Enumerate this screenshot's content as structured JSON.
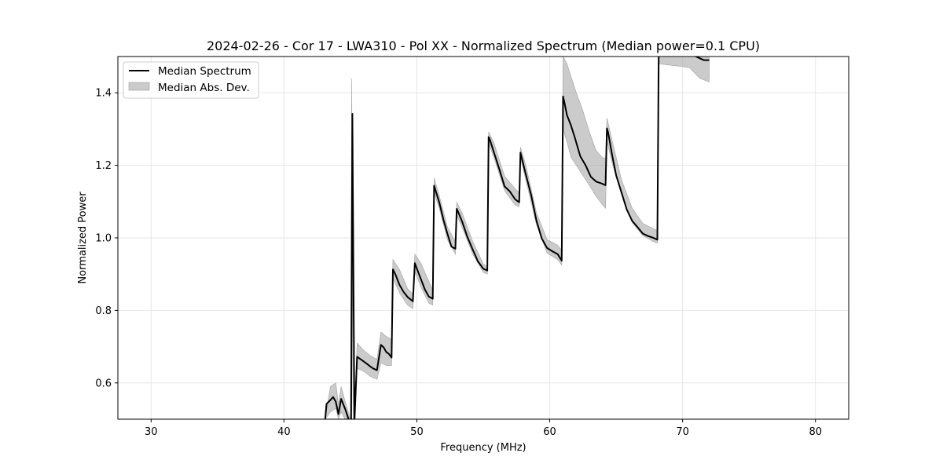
{
  "chart_data": {
    "type": "line",
    "title": "2024-02-26 - Cor 17 - LWA310 - Pol XX - Normalized Spectrum (Median power=0.1 CPU)",
    "xlabel": "Frequency (MHz)",
    "ylabel": "Normalized Power",
    "xlim": [
      27.5,
      82.5
    ],
    "ylim": [
      0.5,
      1.5
    ],
    "xticks": [
      30,
      40,
      50,
      60,
      70,
      80
    ],
    "yticks": [
      0.6,
      0.8,
      1.0,
      1.2,
      1.4
    ],
    "xtick_labels": [
      "30",
      "40",
      "50",
      "60",
      "70",
      "80"
    ],
    "ytick_labels": [
      "0.6",
      "0.8",
      "1.0",
      "1.2",
      "1.4"
    ],
    "grid": true,
    "legend_position": "upper-left",
    "colors": {
      "line": "#000000",
      "band": "#a0a0a0",
      "grid": "#e6e6e6"
    },
    "series": [
      {
        "name": "Median Spectrum",
        "kind": "line",
        "x": [
          43.1,
          43.2,
          43.5,
          43.7,
          43.9,
          44.1,
          44.3,
          44.6,
          44.9,
          45.05,
          45.15,
          45.3,
          45.5,
          45.9,
          46.3,
          46.5,
          46.7,
          47.0,
          47.3,
          47.5,
          47.7,
          47.9,
          48.1,
          48.2,
          48.4,
          48.7,
          49.0,
          49.3,
          49.7,
          49.85,
          50.0,
          50.3,
          50.6,
          50.9,
          51.2,
          51.3,
          51.4,
          51.7,
          52.0,
          52.3,
          52.6,
          52.9,
          53.0,
          53.1,
          53.4,
          53.8,
          54.2,
          54.6,
          55.0,
          55.3,
          55.4,
          55.5,
          55.8,
          56.2,
          56.6,
          57.0,
          57.4,
          57.7,
          57.8,
          57.9,
          58.2,
          58.6,
          59.0,
          59.4,
          59.8,
          60.2,
          60.6,
          60.9,
          61.0,
          61.1,
          61.3,
          61.6,
          61.9,
          62.3,
          62.7,
          63.1,
          63.5,
          63.9,
          64.2,
          64.3,
          64.4,
          64.7,
          65.0,
          65.4,
          65.8,
          66.2,
          66.6,
          67.0,
          67.4,
          67.8,
          68.1,
          68.2,
          68.3,
          70.5,
          71.0,
          71.3,
          71.6,
          72.0
        ],
        "y": [
          0.5,
          0.542,
          0.553,
          0.561,
          0.548,
          0.514,
          0.556,
          0.529,
          0.496,
          0.49,
          1.342,
          0.49,
          0.672,
          0.662,
          0.651,
          0.645,
          0.64,
          0.635,
          0.705,
          0.698,
          0.685,
          0.68,
          0.67,
          0.913,
          0.898,
          0.87,
          0.851,
          0.837,
          0.825,
          0.93,
          0.915,
          0.887,
          0.858,
          0.838,
          0.832,
          1.144,
          1.132,
          1.096,
          1.05,
          1.012,
          0.976,
          0.97,
          1.08,
          1.072,
          1.046,
          1.003,
          0.968,
          0.935,
          0.915,
          0.91,
          1.278,
          1.27,
          1.236,
          1.19,
          1.142,
          1.128,
          1.106,
          1.098,
          1.235,
          1.22,
          1.175,
          1.118,
          1.048,
          0.998,
          0.972,
          0.963,
          0.955,
          0.937,
          1.39,
          1.375,
          1.338,
          1.31,
          1.275,
          1.225,
          1.2,
          1.168,
          1.155,
          1.15,
          1.145,
          1.302,
          1.29,
          1.228,
          1.172,
          1.125,
          1.078,
          1.047,
          1.03,
          1.012,
          1.005,
          1.0,
          0.995,
          1.5,
          1.52,
          1.52,
          1.5,
          1.495,
          1.49,
          1.49
        ]
      },
      {
        "name": "Median Abs. Dev.",
        "kind": "band",
        "x": [
          43.1,
          43.5,
          43.9,
          44.1,
          44.3,
          44.6,
          45.0,
          45.1,
          45.2,
          45.3,
          45.5,
          46.0,
          46.5,
          47.0,
          47.3,
          47.7,
          48.1,
          48.2,
          48.7,
          49.3,
          49.7,
          49.85,
          50.3,
          50.9,
          51.2,
          51.3,
          51.7,
          52.3,
          52.9,
          53.0,
          53.4,
          54.2,
          55.0,
          55.3,
          55.4,
          55.8,
          56.6,
          57.4,
          57.7,
          57.8,
          58.2,
          59.0,
          59.8,
          60.6,
          60.9,
          61.0,
          61.3,
          61.6,
          62.0,
          62.5,
          63.0,
          63.5,
          64.0,
          64.2,
          64.3,
          64.7,
          65.4,
          66.2,
          67.0,
          67.8,
          68.1,
          68.2,
          70.5,
          71.3,
          72.0
        ],
        "lower": [
          0.5,
          0.52,
          0.53,
          0.5,
          0.52,
          0.5,
          0.5,
          1.26,
          0.5,
          0.5,
          0.64,
          0.632,
          0.618,
          0.61,
          0.655,
          0.648,
          0.648,
          0.888,
          0.848,
          0.815,
          0.805,
          0.906,
          0.865,
          0.82,
          0.815,
          1.125,
          1.08,
          0.995,
          0.955,
          1.062,
          1.03,
          0.955,
          0.905,
          0.9,
          1.26,
          1.222,
          1.13,
          1.09,
          1.086,
          1.22,
          1.16,
          1.037,
          0.958,
          0.94,
          0.925,
          1.3,
          1.265,
          1.222,
          1.2,
          1.172,
          1.143,
          1.114,
          1.09,
          1.082,
          1.268,
          1.206,
          1.12,
          1.043,
          1.006,
          0.99,
          0.985,
          1.48,
          1.47,
          1.44,
          1.43
        ],
        "upper": [
          0.5,
          0.59,
          0.6,
          0.54,
          0.59,
          0.55,
          0.5,
          1.44,
          0.5,
          0.5,
          0.71,
          0.69,
          0.675,
          0.665,
          0.74,
          0.728,
          0.72,
          0.94,
          0.912,
          0.86,
          0.845,
          0.955,
          0.93,
          0.88,
          0.855,
          1.165,
          1.115,
          1.03,
          0.99,
          1.098,
          1.07,
          0.99,
          0.928,
          0.92,
          1.292,
          1.262,
          1.17,
          1.135,
          1.125,
          1.25,
          1.2,
          1.07,
          0.995,
          0.98,
          0.965,
          1.5,
          1.48,
          1.445,
          1.4,
          1.35,
          1.29,
          1.24,
          1.22,
          1.22,
          1.33,
          1.268,
          1.16,
          1.082,
          1.04,
          1.025,
          1.02,
          1.53,
          1.53,
          1.52,
          1.5
        ]
      }
    ]
  }
}
